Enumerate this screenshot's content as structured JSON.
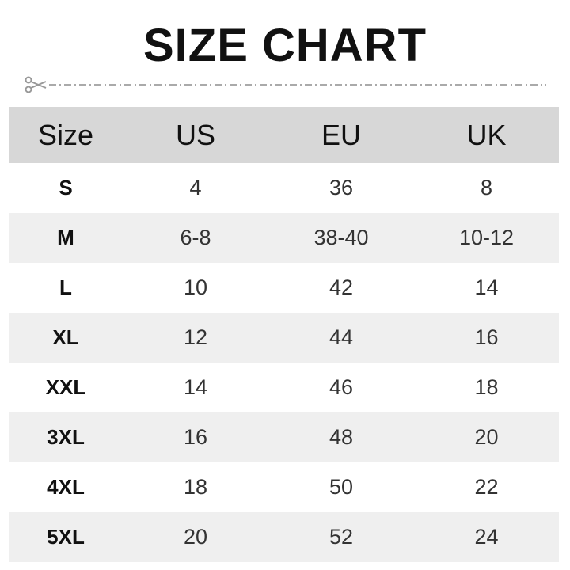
{
  "title": "SIZE CHART",
  "icons": {
    "cut_line": "scissors-icon"
  },
  "colors": {
    "header_bg": "#d7d7d7",
    "alt_row_bg": "#efefef"
  },
  "table": {
    "headers": [
      "Size",
      "US",
      "EU",
      "UK"
    ],
    "rows": [
      [
        "S",
        "4",
        "36",
        "8"
      ],
      [
        "M",
        "6-8",
        "38-40",
        "10-12"
      ],
      [
        "L",
        "10",
        "42",
        "14"
      ],
      [
        "XL",
        "12",
        "44",
        "16"
      ],
      [
        "XXL",
        "14",
        "46",
        "18"
      ],
      [
        "3XL",
        "16",
        "48",
        "20"
      ],
      [
        "4XL",
        "18",
        "50",
        "22"
      ],
      [
        "5XL",
        "20",
        "52",
        "24"
      ]
    ]
  }
}
